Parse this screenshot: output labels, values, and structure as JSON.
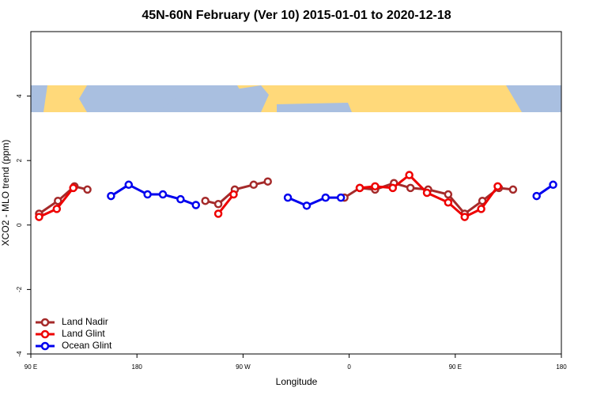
{
  "chart_data": {
    "type": "line",
    "title": "45N-60N February (Ver 10)   2015-01-01 to 2020-12-18",
    "x_label": "Longitude",
    "y_label": "XCO2 - MLO trend (ppm)",
    "xlim": [
      90,
      540
    ],
    "xticks": [
      {
        "value": 90,
        "label": "90 E"
      },
      {
        "value": 180,
        "label": "180"
      },
      {
        "value": 270,
        "label": "90 W"
      },
      {
        "value": 360,
        "label": "0"
      },
      {
        "value": 450,
        "label": "90 E"
      },
      {
        "value": 540,
        "label": "180"
      }
    ],
    "ylim": [
      -4,
      6
    ],
    "yticks": [
      -4,
      -2,
      0,
      2,
      4
    ],
    "legend": "bottom-left",
    "series": [
      {
        "name": "Land Nadir",
        "color": "#a52a2a",
        "x": [
          97,
          113,
          127,
          138,
          null,
          238,
          249,
          263,
          279,
          291,
          null,
          356,
          369,
          382,
          398,
          412,
          427,
          444,
          458,
          473,
          487,
          499
        ],
        "values": [
          0.35,
          0.75,
          1.2,
          1.1,
          null,
          0.75,
          0.65,
          1.1,
          1.25,
          1.35,
          null,
          0.85,
          1.15,
          1.1,
          1.3,
          1.15,
          1.1,
          0.95,
          0.35,
          0.75,
          1.15,
          1.1
        ]
      },
      {
        "name": "Land Glint",
        "color": "#ee0000",
        "x": [
          97,
          112,
          126,
          null,
          249,
          262,
          null,
          369,
          382,
          397,
          411,
          426,
          444,
          458,
          472,
          486
        ],
        "values": [
          0.25,
          0.5,
          1.15,
          null,
          0.35,
          0.95,
          null,
          1.15,
          1.2,
          1.15,
          1.55,
          1.0,
          0.7,
          0.25,
          0.5,
          1.2
        ]
      },
      {
        "name": "Ocean Glint",
        "color": "#0000ee",
        "x": [
          158,
          173,
          189,
          202,
          217,
          230,
          null,
          308,
          324,
          340,
          353,
          null,
          519,
          533
        ],
        "values": [
          0.9,
          1.25,
          0.95,
          0.95,
          0.8,
          0.62,
          null,
          0.85,
          0.6,
          0.85,
          0.85,
          null,
          0.9,
          1.25
        ]
      }
    ]
  }
}
